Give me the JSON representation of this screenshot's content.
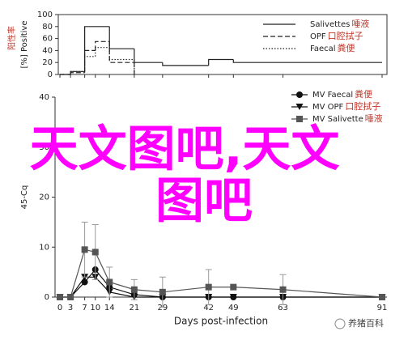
{
  "chart_data": [
    {
      "type": "step",
      "y_label": "[%] Positive",
      "y_label_cn": "阳性率",
      "xlim": [
        0,
        91
      ],
      "xticks": [
        0,
        3,
        7,
        10,
        14,
        21,
        29,
        42,
        49,
        63,
        91
      ],
      "ylim": [
        0,
        100
      ],
      "yticks": [
        0,
        20,
        40,
        60,
        80,
        100
      ],
      "series": [
        {
          "name": "Salivettes",
          "label_cn": "唾液",
          "color": "#222222",
          "dash": "solid",
          "x": [
            0,
            3,
            7,
            14,
            21,
            29,
            42,
            49,
            91
          ],
          "values": [
            0,
            5,
            80,
            43,
            20,
            15,
            25,
            20,
            20
          ]
        },
        {
          "name": "OPF",
          "label_cn": "口腔拭子",
          "color": "#222222",
          "dash": "dashed",
          "x": [
            0,
            3,
            7,
            10,
            14,
            21
          ],
          "values": [
            0,
            3,
            40,
            55,
            20,
            0
          ]
        },
        {
          "name": "Faecal",
          "label_cn": "粪便",
          "color": "#222222",
          "dash": "dotted",
          "x": [
            0,
            3,
            7,
            10,
            14,
            21
          ],
          "values": [
            0,
            5,
            30,
            45,
            25,
            0
          ]
        }
      ]
    },
    {
      "type": "line",
      "y_label": "45-Cq",
      "x_label": "Days post-infection",
      "x": [
        0,
        3,
        7,
        10,
        14,
        21,
        29,
        42,
        49,
        63,
        91
      ],
      "xlim": [
        0,
        91
      ],
      "xticks": [
        0,
        3,
        7,
        10,
        14,
        21,
        29,
        42,
        49,
        63,
        91
      ],
      "ylim": [
        0,
        40
      ],
      "yticks": [
        0,
        10,
        20,
        30,
        40
      ],
      "series": [
        {
          "name": "MV Faecal",
          "label_cn": "粪便",
          "color": "#111111",
          "marker": "circle",
          "values": [
            0,
            0,
            3,
            5.5,
            2,
            0.5,
            0,
            0,
            0,
            0,
            0
          ]
        },
        {
          "name": "MV OPF",
          "label_cn": "口腔拭子",
          "color": "#111111",
          "marker": "triangle",
          "values": [
            0,
            0,
            4,
            4,
            1,
            0,
            0,
            0,
            0,
            0,
            0
          ]
        },
        {
          "name": "MV Salivette",
          "label_cn": "唾液",
          "color": "#555555",
          "marker": "square",
          "values": [
            0,
            0,
            9.5,
            9,
            3,
            1.5,
            1,
            2,
            2,
            1.5,
            0
          ],
          "errors": [
            0,
            0,
            5.5,
            5.5,
            3,
            2,
            3,
            3.5,
            0,
            3,
            0
          ]
        }
      ]
    }
  ],
  "watermark": [
    "天文图吧,天文",
    "图吧"
  ],
  "logo": "养猪百科"
}
